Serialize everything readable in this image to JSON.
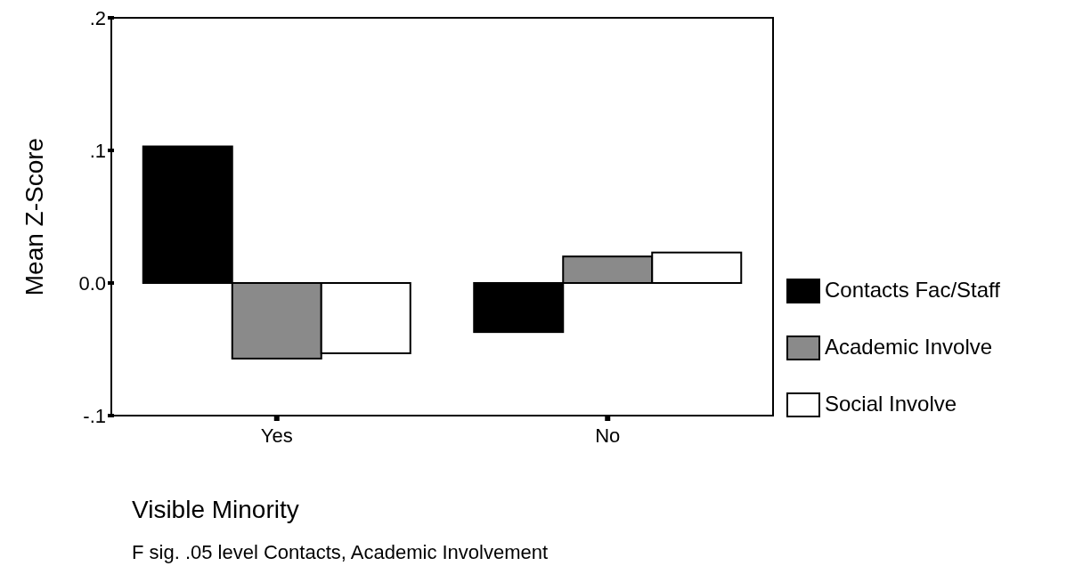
{
  "chart_data": {
    "type": "bar",
    "xlabel": "Visible Minority",
    "ylabel": "Mean Z-Score",
    "categories": [
      "Yes",
      "No"
    ],
    "series": [
      {
        "name": "Contacts Fac/Staff",
        "color": "#000000",
        "values": [
          0.103,
          -0.037
        ]
      },
      {
        "name": "Academic Involve",
        "color": "#8a8a8a",
        "values": [
          -0.057,
          0.02
        ]
      },
      {
        "name": "Social Involve",
        "color": "#ffffff",
        "values": [
          -0.053,
          0.023
        ]
      }
    ],
    "ylim": [
      -0.1,
      0.2
    ],
    "yticks": [
      {
        "value": -0.1,
        "label": "-.1"
      },
      {
        "value": 0,
        "label": "0.0"
      },
      {
        "value": 0.1,
        "label": ".1"
      },
      {
        "value": 0.2,
        "label": ".2"
      }
    ],
    "legend": "right",
    "annotations": [
      "F sig. .05 level Contacts, Academic Involvement"
    ]
  }
}
